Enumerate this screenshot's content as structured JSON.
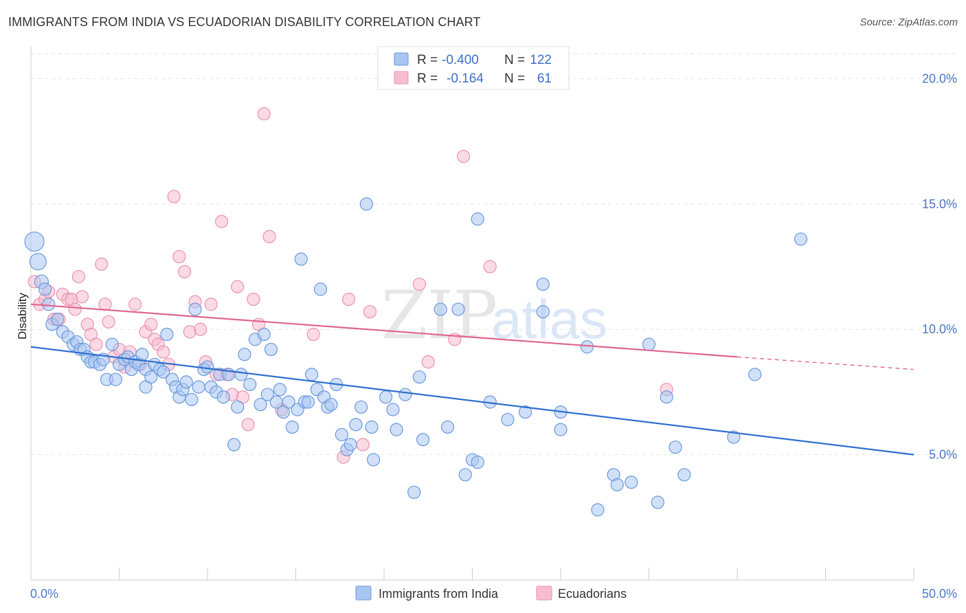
{
  "title": "IMMIGRANTS FROM INDIA VS ECUADORIAN DISABILITY CORRELATION CHART",
  "source": "Source: ZipAtlas.com",
  "watermark": {
    "zip": "ZIP",
    "atlas": "atlas"
  },
  "legend": {
    "rows": [
      {
        "r_label": "R =",
        "r_value": "-0.400",
        "n_label": "N =",
        "n_value": "122"
      },
      {
        "r_label": "R =",
        "r_value": "-0.164",
        "n_label": "N =",
        "n_value": "61"
      }
    ]
  },
  "colors": {
    "india_fill": "#a9c6f2",
    "india_stroke": "#6a98dc",
    "india_line": "#2e6fce",
    "ecuador_fill": "#f7bcd0",
    "ecuador_stroke": "#e892b0",
    "ecuador_line": "#e0668e"
  },
  "chart_data": {
    "type": "scatter",
    "title": "IMMIGRANTS FROM INDIA VS ECUADORIAN DISABILITY CORRELATION CHART",
    "xlabel": "",
    "ylabel": "Disability",
    "xlim": [
      0,
      50
    ],
    "ylim": [
      0,
      21
    ],
    "y_ticks": [
      5,
      10,
      15,
      20
    ],
    "y_tick_labels": [
      "5.0%",
      "10.0%",
      "15.0%",
      "20.0%"
    ],
    "x_tick_labels": [
      "0.0%",
      "50.0%"
    ],
    "grid": true,
    "legend_position": "top-center",
    "series": [
      {
        "name": "Immigrants from India",
        "color": "#6a98dc",
        "trend": {
          "x": [
            0,
            50
          ],
          "y": [
            9.3,
            5.0
          ]
        },
        "points": [
          [
            0.2,
            13.5
          ],
          [
            0.4,
            12.7
          ],
          [
            0.6,
            11.9
          ],
          [
            0.8,
            11.6
          ],
          [
            1.0,
            11.0
          ],
          [
            1.2,
            10.2
          ],
          [
            1.5,
            10.4
          ],
          [
            1.8,
            9.9
          ],
          [
            2.1,
            9.7
          ],
          [
            2.4,
            9.4
          ],
          [
            2.6,
            9.5
          ],
          [
            2.8,
            9.2
          ],
          [
            3.0,
            9.2
          ],
          [
            3.2,
            8.9
          ],
          [
            3.4,
            8.7
          ],
          [
            3.6,
            8.7
          ],
          [
            3.9,
            8.6
          ],
          [
            4.1,
            8.8
          ],
          [
            4.3,
            8.0
          ],
          [
            4.6,
            9.4
          ],
          [
            4.8,
            8.0
          ],
          [
            5.0,
            8.6
          ],
          [
            5.3,
            8.8
          ],
          [
            5.5,
            8.9
          ],
          [
            5.7,
            8.4
          ],
          [
            5.9,
            8.7
          ],
          [
            6.1,
            8.6
          ],
          [
            6.3,
            9.0
          ],
          [
            6.5,
            8.4
          ],
          [
            6.5,
            7.7
          ],
          [
            6.8,
            8.1
          ],
          [
            7.0,
            8.6
          ],
          [
            7.3,
            8.4
          ],
          [
            7.5,
            8.3
          ],
          [
            7.7,
            9.8
          ],
          [
            8.0,
            8.0
          ],
          [
            8.2,
            7.7
          ],
          [
            8.4,
            7.3
          ],
          [
            8.6,
            7.6
          ],
          [
            8.8,
            7.9
          ],
          [
            9.1,
            7.2
          ],
          [
            9.3,
            10.8
          ],
          [
            9.5,
            7.7
          ],
          [
            9.8,
            8.4
          ],
          [
            10.0,
            8.5
          ],
          [
            10.2,
            7.7
          ],
          [
            10.5,
            7.5
          ],
          [
            10.7,
            8.2
          ],
          [
            10.9,
            7.3
          ],
          [
            11.2,
            8.2
          ],
          [
            11.5,
            5.4
          ],
          [
            11.7,
            6.9
          ],
          [
            11.9,
            8.2
          ],
          [
            12.1,
            9.0
          ],
          [
            12.4,
            7.8
          ],
          [
            12.7,
            9.6
          ],
          [
            13.0,
            7.0
          ],
          [
            13.2,
            9.8
          ],
          [
            13.4,
            7.4
          ],
          [
            13.6,
            9.2
          ],
          [
            13.9,
            7.1
          ],
          [
            14.1,
            7.6
          ],
          [
            14.3,
            6.7
          ],
          [
            14.6,
            7.1
          ],
          [
            14.8,
            6.1
          ],
          [
            15.1,
            6.8
          ],
          [
            15.3,
            12.8
          ],
          [
            15.5,
            7.1
          ],
          [
            15.7,
            7.1
          ],
          [
            15.9,
            8.2
          ],
          [
            16.2,
            7.6
          ],
          [
            16.4,
            11.6
          ],
          [
            16.6,
            7.3
          ],
          [
            16.8,
            6.9
          ],
          [
            17.0,
            7.0
          ],
          [
            17.3,
            7.8
          ],
          [
            17.6,
            5.8
          ],
          [
            17.9,
            5.2
          ],
          [
            18.1,
            5.4
          ],
          [
            18.4,
            6.2
          ],
          [
            18.7,
            6.9
          ],
          [
            19.0,
            15.0
          ],
          [
            19.3,
            6.1
          ],
          [
            19.4,
            4.8
          ],
          [
            20.1,
            7.3
          ],
          [
            20.5,
            6.8
          ],
          [
            20.7,
            6.0
          ],
          [
            21.2,
            7.4
          ],
          [
            21.7,
            3.5
          ],
          [
            22.0,
            8.1
          ],
          [
            22.2,
            5.6
          ],
          [
            23.2,
            10.8
          ],
          [
            23.6,
            6.1
          ],
          [
            24.2,
            10.8
          ],
          [
            24.6,
            4.2
          ],
          [
            25.0,
            4.8
          ],
          [
            25.3,
            14.4
          ],
          [
            25.3,
            4.7
          ],
          [
            26.0,
            7.1
          ],
          [
            27.0,
            6.4
          ],
          [
            28.0,
            6.7
          ],
          [
            29.0,
            10.7
          ],
          [
            29.0,
            11.8
          ],
          [
            30.0,
            6.7
          ],
          [
            30.0,
            6.0
          ],
          [
            31.5,
            9.3
          ],
          [
            32.1,
            2.8
          ],
          [
            33.0,
            4.2
          ],
          [
            33.2,
            3.8
          ],
          [
            34.0,
            3.9
          ],
          [
            35.0,
            9.4
          ],
          [
            35.5,
            3.1
          ],
          [
            36.0,
            7.3
          ],
          [
            36.5,
            5.3
          ],
          [
            37.0,
            4.2
          ],
          [
            39.8,
            5.7
          ],
          [
            41.0,
            8.2
          ],
          [
            43.6,
            13.6
          ]
        ]
      },
      {
        "name": "Ecuadorians",
        "color": "#e892b0",
        "trend": {
          "x": [
            0,
            40
          ],
          "y": [
            11.0,
            8.9
          ]
        },
        "trend_dashed": {
          "x": [
            40,
            50
          ],
          "y": [
            8.9,
            8.4
          ]
        },
        "points": [
          [
            0.2,
            11.9
          ],
          [
            0.5,
            11.0
          ],
          [
            0.8,
            11.2
          ],
          [
            1.0,
            11.5
          ],
          [
            1.3,
            10.4
          ],
          [
            1.6,
            10.4
          ],
          [
            1.8,
            11.4
          ],
          [
            2.1,
            11.2
          ],
          [
            2.3,
            11.2
          ],
          [
            2.5,
            10.8
          ],
          [
            2.7,
            12.1
          ],
          [
            2.9,
            11.3
          ],
          [
            3.2,
            10.2
          ],
          [
            3.4,
            9.8
          ],
          [
            3.7,
            9.4
          ],
          [
            4.0,
            12.6
          ],
          [
            4.2,
            11.0
          ],
          [
            4.4,
            10.3
          ],
          [
            4.7,
            8.9
          ],
          [
            5.0,
            9.2
          ],
          [
            5.3,
            8.5
          ],
          [
            5.6,
            9.1
          ],
          [
            5.9,
            11.0
          ],
          [
            6.2,
            8.6
          ],
          [
            6.5,
            9.9
          ],
          [
            6.8,
            10.2
          ],
          [
            7.0,
            9.6
          ],
          [
            7.2,
            9.4
          ],
          [
            7.5,
            9.1
          ],
          [
            7.8,
            8.6
          ],
          [
            8.1,
            15.3
          ],
          [
            8.4,
            12.9
          ],
          [
            8.7,
            12.3
          ],
          [
            9.0,
            9.9
          ],
          [
            9.3,
            11.1
          ],
          [
            9.6,
            10.0
          ],
          [
            9.9,
            8.7
          ],
          [
            10.2,
            11.0
          ],
          [
            10.5,
            8.2
          ],
          [
            10.8,
            14.3
          ],
          [
            11.1,
            8.2
          ],
          [
            11.4,
            7.4
          ],
          [
            11.7,
            11.7
          ],
          [
            12.0,
            7.3
          ],
          [
            12.3,
            6.2
          ],
          [
            12.6,
            11.2
          ],
          [
            12.9,
            10.2
          ],
          [
            13.2,
            18.6
          ],
          [
            13.5,
            13.7
          ],
          [
            14.2,
            6.8
          ],
          [
            16.0,
            9.8
          ],
          [
            17.7,
            4.9
          ],
          [
            18.0,
            11.2
          ],
          [
            18.8,
            5.4
          ],
          [
            19.2,
            10.7
          ],
          [
            22.0,
            11.8
          ],
          [
            22.5,
            8.7
          ],
          [
            24.0,
            9.6
          ],
          [
            24.5,
            16.9
          ],
          [
            26.0,
            12.5
          ],
          [
            36.0,
            7.6
          ]
        ]
      }
    ]
  },
  "bottom_legend": [
    {
      "label": "Immigrants from India"
    },
    {
      "label": "Ecuadorians"
    }
  ]
}
